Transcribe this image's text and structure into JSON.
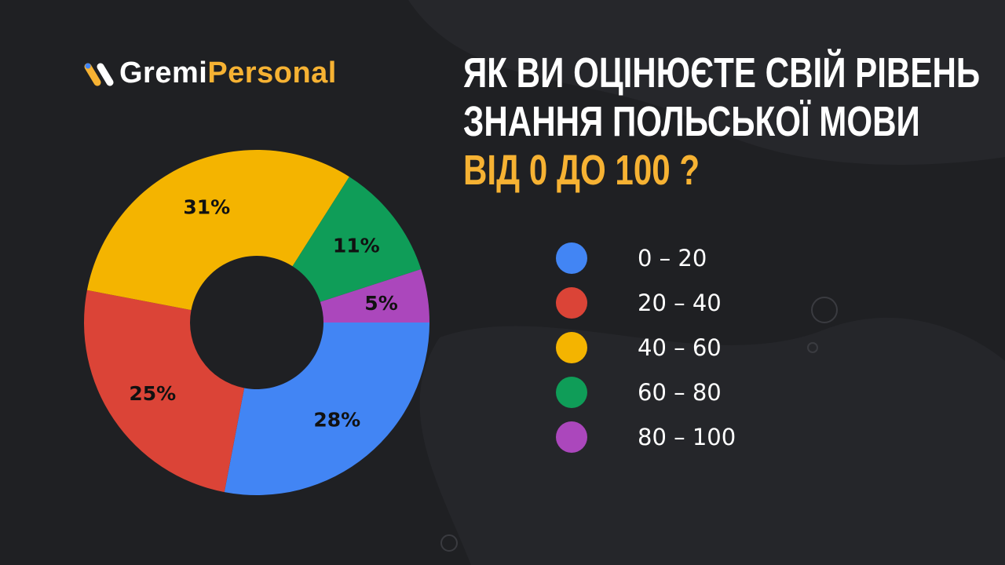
{
  "logo": {
    "part1": "Gremi",
    "part2": "Personal",
    "accent": "#f6b233"
  },
  "title": {
    "line1": "ЯК ВИ ОЦІНЮЄТЕ СВІЙ РІВЕНЬ",
    "line2": "ЗНАННЯ ПОЛЬСЬКОЇ МОВИ",
    "line3": "ВІД 0 ДО 100 ?"
  },
  "chart_data": {
    "type": "pie",
    "donut": true,
    "categories": [
      "0 – 20",
      "20 – 40",
      "40 – 60",
      "60 – 80",
      "80 – 100"
    ],
    "values": [
      28,
      25,
      31,
      11,
      5
    ],
    "labels": [
      "28%",
      "25%",
      "31%",
      "11%",
      "5%"
    ],
    "colors": [
      "#4285f4",
      "#db4437",
      "#f4b400",
      "#0f9d58",
      "#ab47bc"
    ],
    "legend": "right"
  }
}
